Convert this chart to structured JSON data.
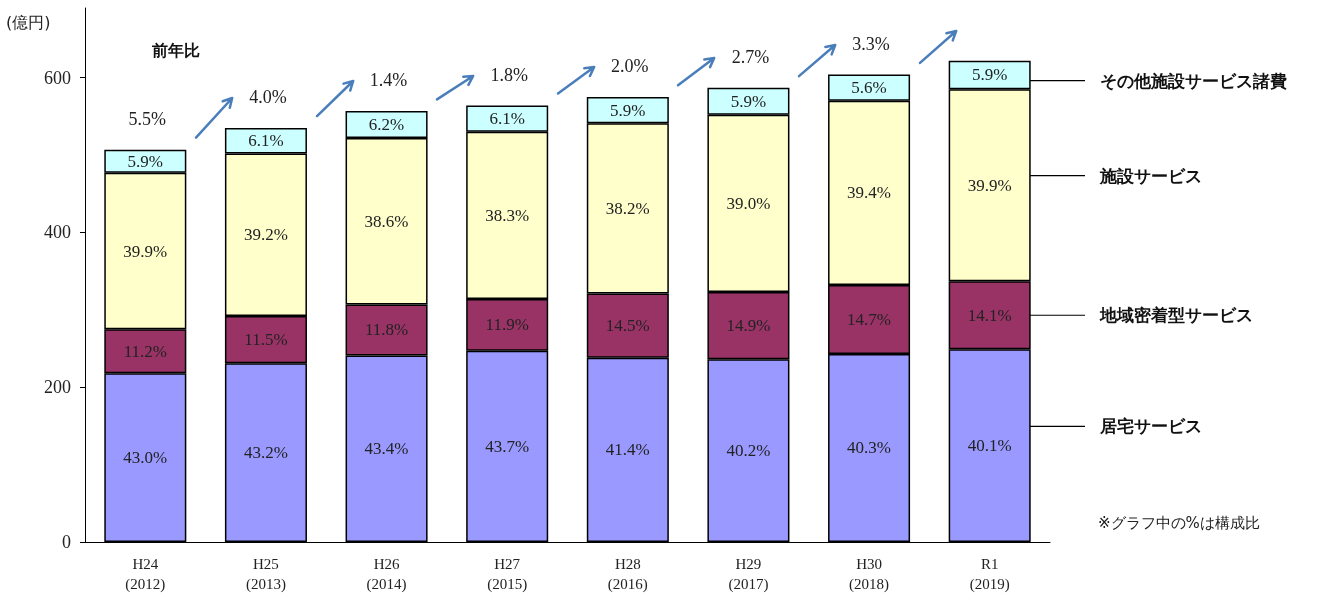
{
  "chart_data": {
    "type": "bar",
    "stacked": true,
    "ylabel": "(億円)",
    "legend": "right",
    "grid": false,
    "categories": [
      "H24\n(2012)",
      "H25\n(2013)",
      "H26\n(2014)",
      "H27\n(2015)",
      "H28\n(2016)",
      "H29\n(2017)",
      "H30\n(2018)",
      "R1\n(2019)"
    ],
    "ylim": [
      0,
      690
    ],
    "yticks": [
      0,
      200,
      400,
      600
    ],
    "series": [
      {
        "name": "居宅サービス",
        "color": "#9999ff",
        "values": [
          218,
          231,
          241,
          247,
          238,
          236,
          243,
          249
        ]
      },
      {
        "name": "地域密着型サービス",
        "color": "#993366",
        "values": [
          57,
          61,
          66,
          67,
          83,
          87,
          89,
          88
        ]
      },
      {
        "name": "施設サービス",
        "color": "#ffffcc",
        "values": [
          202,
          210,
          215,
          216,
          220,
          229,
          238,
          248
        ]
      },
      {
        "name": "その他施設サービス諸費",
        "color": "#ccffff",
        "values": [
          30,
          33,
          35,
          34,
          34,
          35,
          34,
          37
        ]
      }
    ],
    "annotations": [
      "前年比",
      "5.5%",
      "4.0%",
      "1.4%",
      "1.8%",
      "2.0%",
      "2.7%",
      "3.3%",
      "※グラフ中の%は構成比",
      "43.0%",
      "11.2%",
      "39.9%",
      "5.9%",
      "43.2%",
      "11.5%",
      "39.2%",
      "6.1%",
      "43.4%",
      "11.8%",
      "38.6%",
      "6.2%",
      "43.7%",
      "11.9%",
      "38.3%",
      "6.1%",
      "41.4%",
      "14.5%",
      "38.2%",
      "5.9%",
      "40.2%",
      "14.9%",
      "39.0%",
      "5.9%",
      "40.3%",
      "14.7%",
      "39.4%",
      "5.6%",
      "40.1%",
      "14.1%",
      "39.9%",
      "5.9%"
    ]
  }
}
